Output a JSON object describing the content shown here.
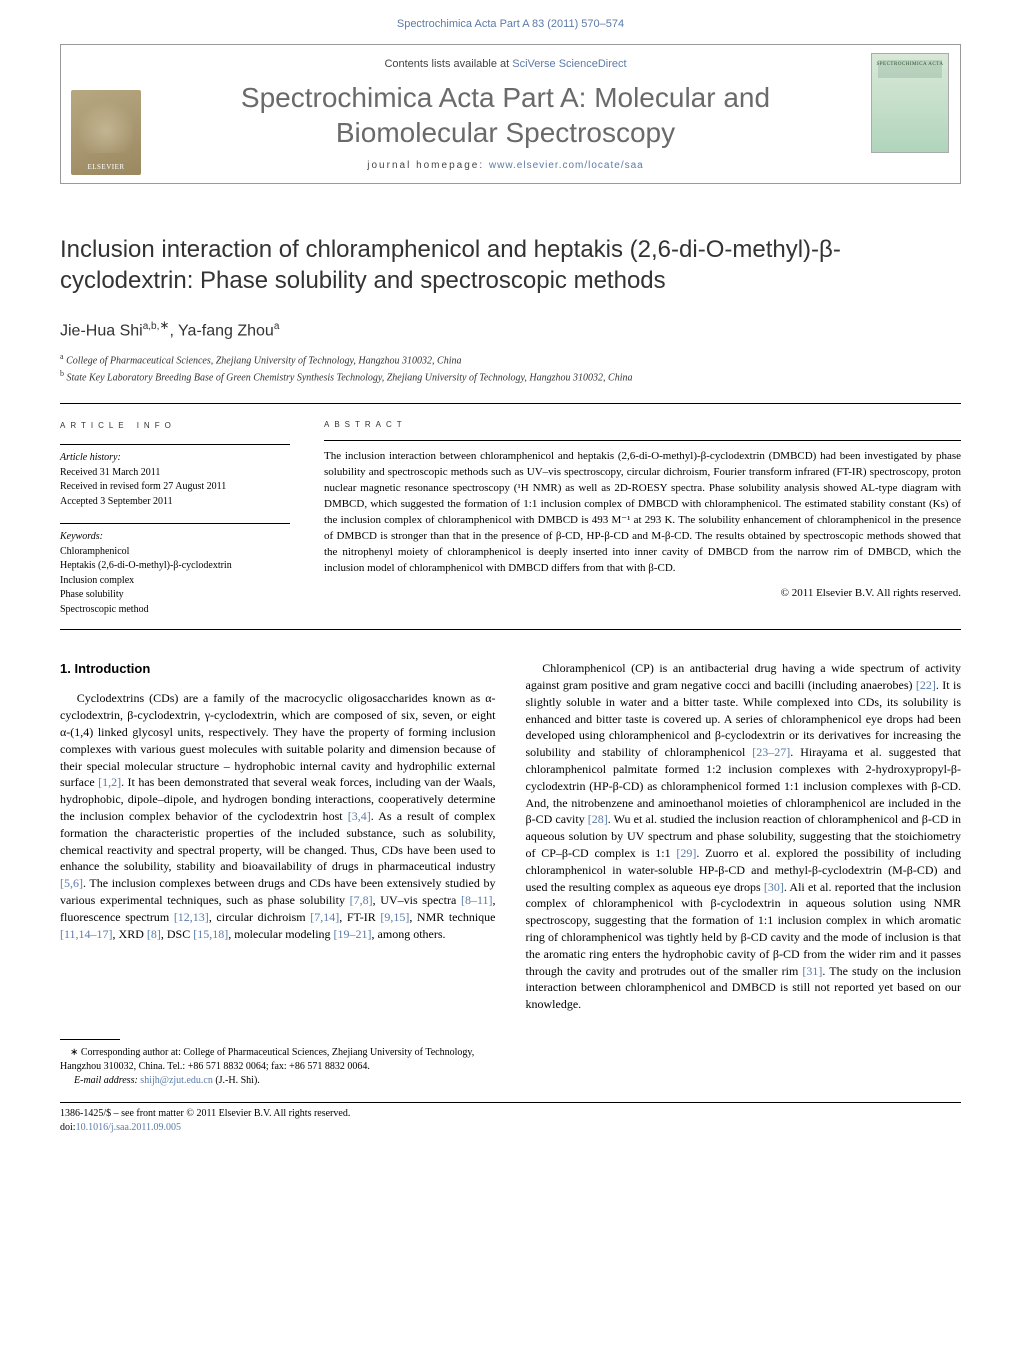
{
  "header": {
    "running_head": "Spectrochimica Acta Part A 83 (2011) 570–574",
    "contents_prefix": "Contents lists available at ",
    "contents_link": "SciVerse ScienceDirect",
    "journal_name": "Spectrochimica Acta Part A: Molecular and Biomolecular Spectroscopy",
    "homepage_prefix": "journal homepage: ",
    "homepage_url": "www.elsevier.com/locate/saa",
    "elsevier": "ELSEVIER",
    "cover_label": "SPECTROCHIMICA ACTA"
  },
  "article": {
    "title": "Inclusion interaction of chloramphenicol and heptakis (2,6-di-O-methyl)-β-cyclodextrin: Phase solubility and spectroscopic methods",
    "authors_html": "Jie-Hua Shi",
    "author_sup1": "a,b,",
    "author_corr": "∗",
    "author2": ", Ya-fang Zhou",
    "author2_sup": "a",
    "affiliations": {
      "a": "College of Pharmaceutical Sciences, Zhejiang University of Technology, Hangzhou 310032, China",
      "b": "State Key Laboratory Breeding Base of Green Chemistry Synthesis Technology, Zhejiang University of Technology, Hangzhou 310032, China"
    }
  },
  "info": {
    "heading": "article info",
    "history_label": "Article history:",
    "received": "Received 31 March 2011",
    "revised": "Received in revised form 27 August 2011",
    "accepted": "Accepted 3 September 2011",
    "keywords_label": "Keywords:",
    "keywords": [
      "Chloramphenicol",
      "Heptakis (2,6-di-O-methyl)-β-cyclodextrin",
      "Inclusion complex",
      "Phase solubility",
      "Spectroscopic method"
    ]
  },
  "abstract": {
    "heading": "abstract",
    "text": "The inclusion interaction between chloramphenicol and heptakis (2,6-di-O-methyl)-β-cyclodextrin (DMBCD) had been investigated by phase solubility and spectroscopic methods such as UV–vis spectroscopy, circular dichroism, Fourier transform infrared (FT-IR) spectroscopy, proton nuclear magnetic resonance spectroscopy (¹H NMR) as well as 2D-ROESY spectra. Phase solubility analysis showed AL-type diagram with DMBCD, which suggested the formation of 1:1 inclusion complex of DMBCD with chloramphenicol. The estimated stability constant (Ks) of the inclusion complex of chloramphenicol with DMBCD is 493 M⁻¹ at 293 K. The solubility enhancement of chloramphenicol in the presence of DMBCD is stronger than that in the presence of β-CD, HP-β-CD and M-β-CD. The results obtained by spectroscopic methods showed that the nitrophenyl moiety of chloramphenicol is deeply inserted into inner cavity of DMBCD from the narrow rim of DMBCD, which the inclusion model of chloramphenicol with DMBCD differs from that with β-CD.",
    "copyright": "© 2011 Elsevier B.V. All rights reserved."
  },
  "body": {
    "section_heading": "1. Introduction",
    "left_para": "Cyclodextrins (CDs) are a family of the macrocyclic oligosaccharides known as α-cyclodextrin, β-cyclodextrin, γ-cyclodextrin, which are composed of six, seven, or eight α-(1,4) linked glycosyl units, respectively. They have the property of forming inclusion complexes with various guest molecules with suitable polarity and dimension because of their special molecular structure – hydrophobic internal cavity and hydrophilic external surface [1,2]. It has been demonstrated that several weak forces, including van der Waals, hydrophobic, dipole–dipole, and hydrogen bonding interactions, cooperatively determine the inclusion complex behavior of the cyclodextrin host [3,4]. As a result of complex formation the characteristic properties of the included substance, such as solubility, chemical reactivity and spectral property, will be changed. Thus, CDs have been used to enhance the solubility, stability and bioavailability of drugs in pharmaceutical industry [5,6]. The inclusion complexes between drugs and CDs have been extensively studied by various experimental techniques, such as phase solubility [7,8], UV–vis spectra [8–11], fluorescence spectrum [12,13], circular dichroism [7,14], FT-IR [9,15], NMR technique [11,14–17], XRD [8], DSC [15,18], molecular modeling [19–21], among others.",
    "right_para": "Chloramphenicol (CP) is an antibacterial drug having a wide spectrum of activity against gram positive and gram negative cocci and bacilli (including anaerobes) [22]. It is slightly soluble in water and a bitter taste. While complexed into CDs, its solubility is enhanced and bitter taste is covered up. A series of chloramphenicol eye drops had been developed using chloramphenicol and β-cyclodextrin or its derivatives for increasing the solubility and stability of chloramphenicol [23–27]. Hirayama et al. suggested that chloramphenicol palmitate formed 1:2 inclusion complexes with 2-hydroxypropyl-β-cyclodextrin (HP-β-CD) as chloramphenicol formed 1:1 inclusion complexes with β-CD. And, the nitrobenzene and aminoethanol moieties of chloramphenicol are included in the β-CD cavity [28]. Wu et al. studied the inclusion reaction of chloramphenicol and β-CD in aqueous solution by UV spectrum and phase solubility, suggesting that the stoichiometry of CP–β-CD complex is 1:1 [29]. Zuorro et al. explored the possibility of including chloramphenicol in water-soluble HP-β-CD and methyl-β-cyclodextrin (M-β-CD) and used the resulting complex as aqueous eye drops [30]. Ali et al. reported that the inclusion complex of chloramphenicol with β-cyclodextrin in aqueous solution using NMR spectroscopy, suggesting that the formation of 1:1 inclusion complex in which aromatic ring of chloramphenicol was tightly held by β-CD cavity and the mode of inclusion is that the aromatic ring enters the hydrophobic cavity of β-CD from the wider rim and it passes through the cavity and protrudes out of the smaller rim [31]. The study on the inclusion interaction between chloramphenicol and DMBCD is still not reported yet based on our knowledge.",
    "refs_left": {
      "r1": "[1,2]",
      "r2": "[3,4]",
      "r3": "[5,6]",
      "r4": "[7,8]",
      "r5": "[8–11]",
      "r6": "[12,13]",
      "r7": "[7,14]",
      "r8": "[9,15]",
      "r9": "[11,14–17]",
      "r10": "[8]",
      "r11": "[15,18]",
      "r12": "[19–21]"
    },
    "refs_right": {
      "r1": "[22]",
      "r2": "[23–27]",
      "r3": "[28]",
      "r4": "[29]",
      "r5": "[30]",
      "r6": "[31]"
    }
  },
  "footnotes": {
    "corr": "∗ Corresponding author at: College of Pharmaceutical Sciences, Zhejiang University of Technology, Hangzhou 310032, China. Tel.: +86 571 8832 0064; fax: +86 571 8832 0064.",
    "email_label": "E-mail address: ",
    "email": "shijh@zjut.edu.cn",
    "email_suffix": " (J.-H. Shi)."
  },
  "bottom": {
    "line1": "1386-1425/$ – see front matter © 2011 Elsevier B.V. All rights reserved.",
    "doi_prefix": "doi:",
    "doi": "10.1016/j.saa.2011.09.005"
  },
  "colors": {
    "link": "#5b7ba8",
    "text": "#000000",
    "heading_gray": "#6a6a6a"
  }
}
